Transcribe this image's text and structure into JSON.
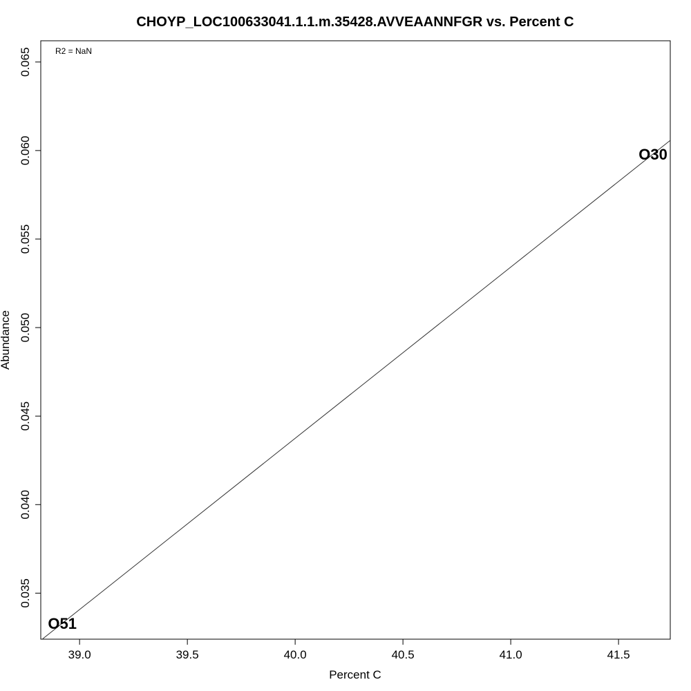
{
  "chart_data": {
    "type": "scatter",
    "title": "CHOYP_LOC100633041.1.1.m.35428.AVVEAANNFGR vs. Percent C",
    "xlabel": "Percent C",
    "ylabel": "Abundance",
    "xlim": [
      38.82,
      41.74
    ],
    "ylim": [
      0.0324,
      0.0662
    ],
    "xticks": [
      39.0,
      39.5,
      40.0,
      40.5,
      41.0,
      41.5
    ],
    "xtick_labels": [
      "39.0",
      "39.5",
      "40.0",
      "40.5",
      "41.0",
      "41.5"
    ],
    "yticks": [
      0.035,
      0.04,
      0.045,
      0.05,
      0.055,
      0.06,
      0.065
    ],
    "ytick_labels": [
      "0.035",
      "0.040",
      "0.045",
      "0.050",
      "0.055",
      "0.060",
      "0.065"
    ],
    "points": [
      {
        "label": "O51",
        "x": 38.92,
        "y": 0.0333
      },
      {
        "label": "O30",
        "x": 41.66,
        "y": 0.0598
      }
    ],
    "fit_line": {
      "x1": 38.92,
      "y1": 0.0333,
      "x2": 41.66,
      "y2": 0.0598
    },
    "annotation": "R2 = NaN",
    "grid": false,
    "frame": true
  }
}
